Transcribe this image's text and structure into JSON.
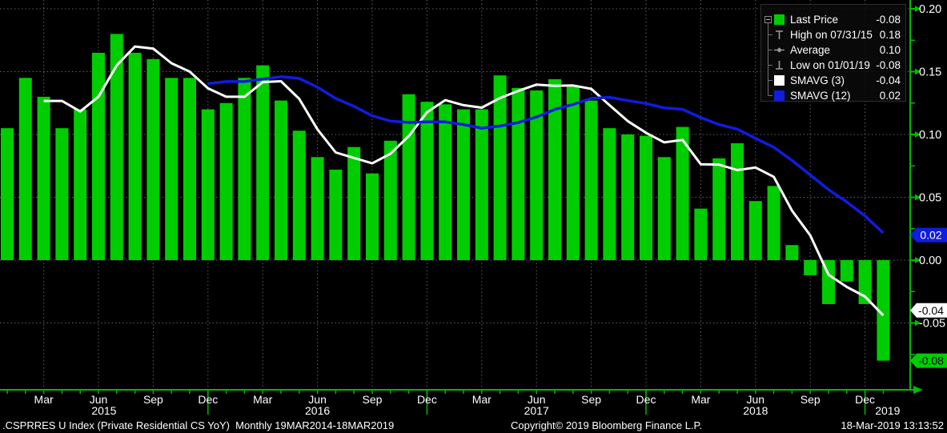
{
  "chart_data": {
    "type": "bar",
    "title": ".CSPRRES U Index (Private Residential CS YoY)",
    "period": "Monthly",
    "date_range": "19MAR2014-18MAR2019",
    "bar_color": "#00cd00",
    "categories": [
      "2015-01",
      "2015-02",
      "2015-03",
      "2015-04",
      "2015-05",
      "2015-06",
      "2015-07",
      "2015-08",
      "2015-09",
      "2015-10",
      "2015-11",
      "2015-12",
      "2016-01",
      "2016-02",
      "2016-03",
      "2016-04",
      "2016-05",
      "2016-06",
      "2016-07",
      "2016-08",
      "2016-09",
      "2016-10",
      "2016-11",
      "2016-12",
      "2017-01",
      "2017-02",
      "2017-03",
      "2017-04",
      "2017-05",
      "2017-06",
      "2017-07",
      "2017-08",
      "2017-09",
      "2017-10",
      "2017-11",
      "2017-12",
      "2018-01",
      "2018-02",
      "2018-03",
      "2018-04",
      "2018-05",
      "2018-06",
      "2018-07",
      "2018-08",
      "2018-09",
      "2018-10",
      "2018-11",
      "2018-12",
      "2019-01"
    ],
    "values": [
      0.105,
      0.145,
      0.13,
      0.105,
      0.12,
      0.165,
      0.18,
      0.165,
      0.16,
      0.145,
      0.145,
      0.12,
      0.125,
      0.145,
      0.155,
      0.127,
      0.103,
      0.082,
      0.072,
      0.09,
      0.069,
      0.095,
      0.132,
      0.126,
      0.124,
      0.12,
      0.12,
      0.147,
      0.137,
      0.135,
      0.144,
      0.138,
      0.127,
      0.105,
      0.1,
      0.099,
      0.082,
      0.106,
      0.041,
      0.081,
      0.093,
      0.047,
      0.059,
      0.012,
      -0.012,
      -0.035,
      -0.017,
      -0.035,
      -0.08
    ],
    "series": [
      {
        "name": "SMAVG (3)",
        "type": "moving_average",
        "window": 3,
        "color": "#ffffff",
        "last": -0.04
      },
      {
        "name": "SMAVG (12)",
        "type": "moving_average",
        "window": 12,
        "color": "#101ce0",
        "last": 0.02
      }
    ],
    "ylim": [
      -0.103,
      0.207
    ],
    "yticks": [
      0.2,
      0.15,
      0.1,
      0.05,
      0.0,
      -0.05
    ],
    "x_month_labels": [
      "Mar",
      "Jun",
      "Sep",
      "Dec"
    ],
    "year_labels": [
      "2015",
      "2016",
      "2017",
      "2018",
      "2019"
    ],
    "grid": "dotted",
    "legend_position": "top-right"
  },
  "legend": {
    "items": [
      {
        "icon": "last-price-swatch",
        "label": "Last Price",
        "value": "-0.08"
      },
      {
        "icon": "high-marker",
        "label": "High on 07/31/15",
        "value": "0.18"
      },
      {
        "icon": "average-marker",
        "label": "Average",
        "value": "0.10"
      },
      {
        "icon": "low-marker",
        "label": "Low on 01/01/19",
        "value": "-0.08"
      },
      {
        "icon": "smavg3-swatch",
        "label": "SMAVG (3)",
        "value": "-0.04"
      },
      {
        "icon": "smavg12-swatch",
        "label": "SMAVG (12)",
        "value": "0.02"
      }
    ]
  },
  "axis_badges": [
    {
      "label": "0.02",
      "value": 0.02,
      "bg": "#101ce0",
      "fg": "#ffffff"
    },
    {
      "label": "-0.04",
      "value": -0.04,
      "bg": "#ffffff",
      "fg": "#000000"
    },
    {
      "label": "-0.08",
      "value": -0.08,
      "bg": "#00cd00",
      "fg": "#000000"
    }
  ],
  "colors": {
    "background": "#000000",
    "axis_green": "#00bb00",
    "grid_gray": "#5f5f5f",
    "text_white": "#ffffff",
    "marker_gray": "#9a9a9a"
  },
  "footer": {
    "left": ".CSPRRES U Index (Private Residential CS YoY)  Monthly 19MAR2014-18MAR2019",
    "center": "Copyright© 2019 Bloomberg Finance L.P.",
    "right": "18-Mar-2019 13:13:52"
  }
}
